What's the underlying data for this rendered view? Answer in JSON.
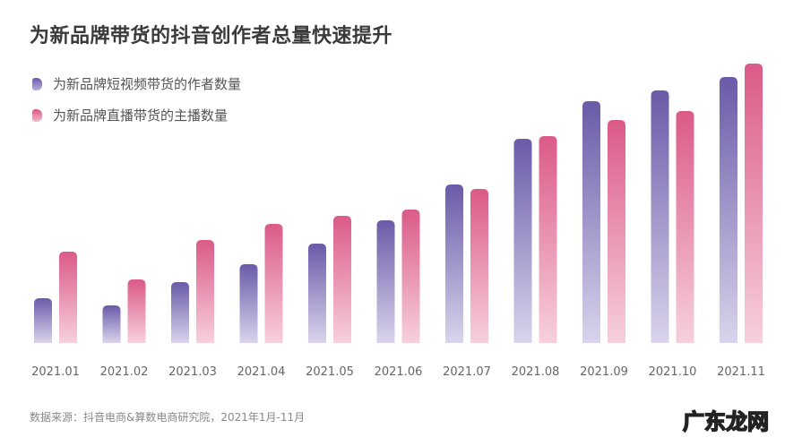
{
  "chart_data": {
    "type": "bar",
    "title": "为新品牌带货的抖音创作者总量快速提升",
    "categories": [
      "2021.01",
      "2021.02",
      "2021.03",
      "2021.04",
      "2021.05",
      "2021.06",
      "2021.07",
      "2021.08",
      "2021.09",
      "2021.10",
      "2021.11"
    ],
    "series": [
      {
        "name": "为新品牌短视频带货的作者数量",
        "color": "#6a5aa8",
        "values": [
          50,
          42,
          68,
          88,
          111,
          137,
          177,
          228,
          270,
          282,
          297
        ]
      },
      {
        "name": "为新品牌直播带货的主播数量",
        "color": "#db5a88",
        "values": [
          102,
          71,
          115,
          133,
          142,
          149,
          172,
          231,
          249,
          259,
          312
        ]
      }
    ],
    "yaxis_shown": false,
    "grid": false,
    "legend_placement": "top-left",
    "value_note_unit": "relative bar height (no axis printed)"
  },
  "source": "数据来源：抖音电商&算数电商研究院，2021年1月-11月",
  "watermark": "广东龙网"
}
